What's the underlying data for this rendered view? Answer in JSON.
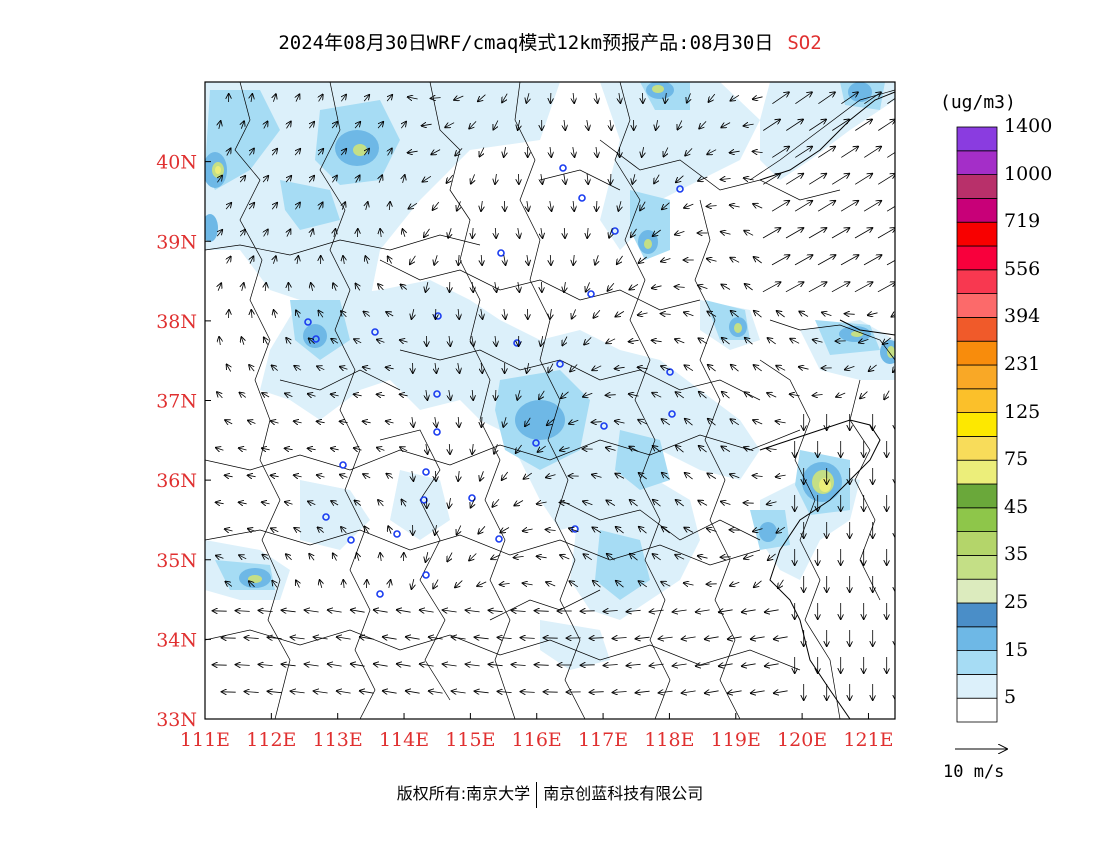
{
  "title": {
    "text": "2024年08月30日WRF/cmaq模式12km预报产品:08月30日",
    "species": "SO2"
  },
  "axes": {
    "lon_labels": [
      "111E",
      "112E",
      "113E",
      "114E",
      "115E",
      "116E",
      "117E",
      "118E",
      "119E",
      "120E",
      "121E"
    ],
    "lat_labels": [
      "33N",
      "34N",
      "35N",
      "36N",
      "37N",
      "38N",
      "39N",
      "40N"
    ],
    "lon_range": [
      111,
      121.4
    ],
    "lat_range": [
      33,
      41
    ]
  },
  "colorbar": {
    "unit": "(ug/m3)",
    "labels": [
      "5",
      "15",
      "25",
      "35",
      "45",
      "75",
      "125",
      "231",
      "394",
      "556",
      "719",
      "1000",
      "1400"
    ],
    "colors": [
      "#ffffff",
      "#dcf0fa",
      "#a6dcf4",
      "#6eb8e6",
      "#4a8ec8",
      "#dcebbe",
      "#c4df86",
      "#b4d56a",
      "#8ec64a",
      "#6aa83a",
      "#ecee7a",
      "#f8dc5a",
      "#fde800",
      "#fbc02a",
      "#f9a826",
      "#f88c0c",
      "#f05a2a",
      "#fc6a6a",
      "#f83850",
      "#f8003c",
      "#f80000",
      "#c80078",
      "#b8306a",
      "#a42ec8",
      "#8a3ce0"
    ],
    "vector_label": "10 m/s"
  },
  "footer": {
    "left": "版权所有:南京大学",
    "right": "南京创蓝科技有限公司"
  }
}
